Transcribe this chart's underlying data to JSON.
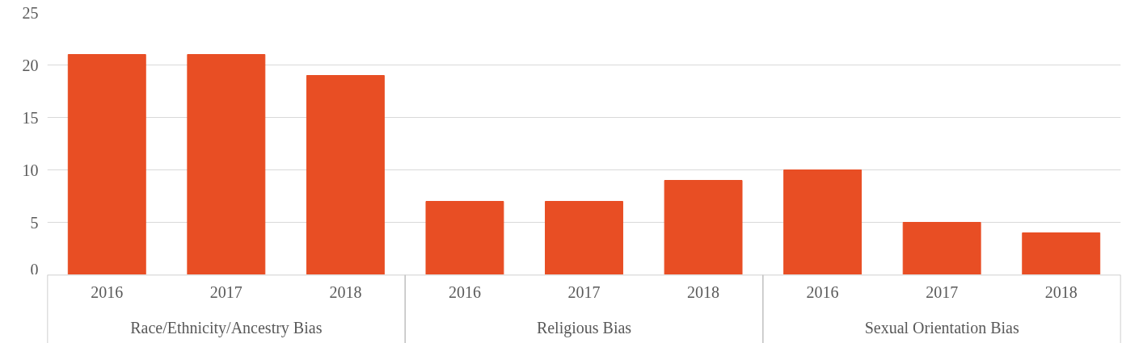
{
  "chart_data": {
    "type": "bar",
    "categories": [
      "2016",
      "2017",
      "2018",
      "2016",
      "2017",
      "2018",
      "2016",
      "2017",
      "2018"
    ],
    "values": [
      21,
      21,
      19,
      7,
      7,
      9,
      10,
      5,
      4
    ],
    "color": "#e84e24",
    "ylim": [
      0,
      25
    ],
    "yticks": [
      0,
      5,
      10,
      15,
      20,
      25
    ],
    "grid": "y",
    "annotations": [
      "Race/Ethnicity/Ancestry Bias",
      "Religious Bias",
      "Sexual Orientation Bias"
    ]
  }
}
